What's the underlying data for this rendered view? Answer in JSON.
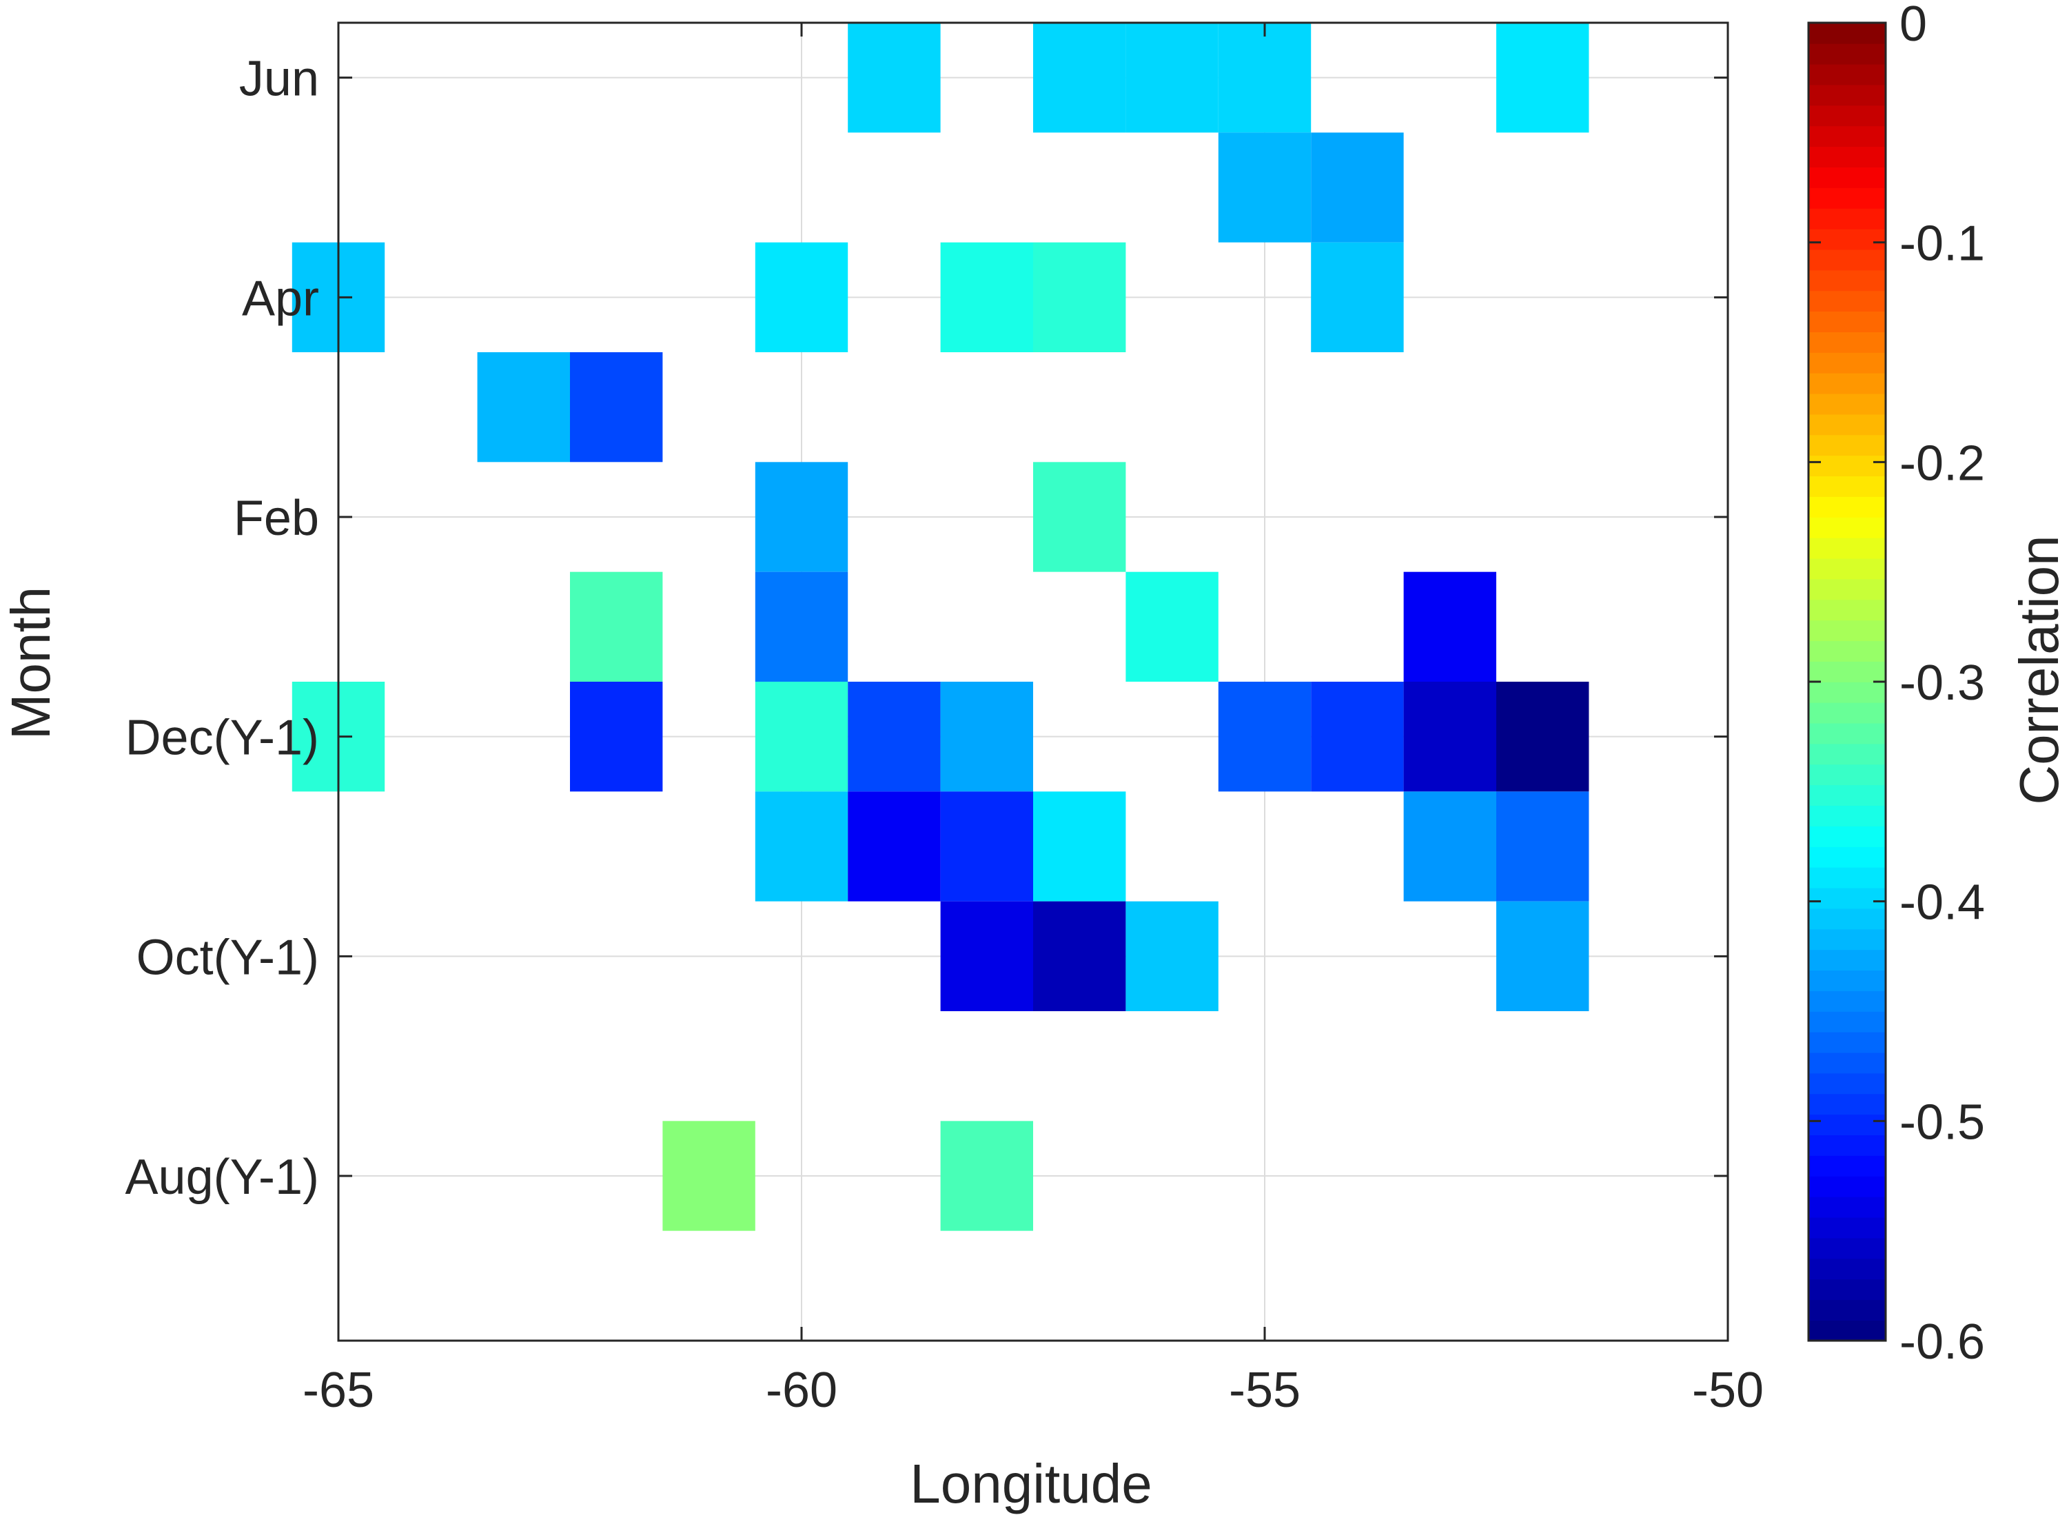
{
  "chart_data": {
    "type": "heatmap",
    "title": "",
    "xlabel": "Longitude",
    "ylabel": "Month",
    "xlim": [
      -65,
      -50
    ],
    "ylim": [
      -5.5,
      6.5
    ],
    "grid": true,
    "x_ticks": [
      -65,
      -60,
      -55,
      -50
    ],
    "x_tick_labels": [
      "-65",
      "-60",
      "-55",
      "-50"
    ],
    "y_ticks": [
      -4,
      -2,
      0,
      2,
      4,
      6
    ],
    "y_tick_labels": [
      "Aug(Y-1)",
      "Oct(Y-1)",
      "Dec(Y-1)",
      "Feb",
      "Apr",
      "Jun"
    ],
    "cell_width": 1,
    "cell_height": 1,
    "colorbar": {
      "label": "Correlation",
      "colormap": "jet",
      "range": [
        -0.6,
        0
      ],
      "levels": 64,
      "ticks": [
        0,
        -0.1,
        -0.2,
        -0.3,
        -0.4,
        -0.5,
        -0.6
      ],
      "tick_labels": [
        "0",
        "-0.1",
        "-0.2",
        "-0.3",
        "-0.4",
        "-0.5",
        "-0.6"
      ]
    },
    "cells": [
      {
        "x": -59,
        "y": 6,
        "v": -0.4
      },
      {
        "x": -57,
        "y": 6,
        "v": -0.4
      },
      {
        "x": -56,
        "y": 6,
        "v": -0.4
      },
      {
        "x": -55,
        "y": 6,
        "v": -0.4
      },
      {
        "x": -52,
        "y": 6,
        "v": -0.39
      },
      {
        "x": -55,
        "y": 5,
        "v": -0.42
      },
      {
        "x": -54,
        "y": 5,
        "v": -0.43
      },
      {
        "x": -65,
        "y": 4,
        "v": -0.41
      },
      {
        "x": -60,
        "y": 4,
        "v": -0.39
      },
      {
        "x": -58,
        "y": 4,
        "v": -0.36
      },
      {
        "x": -57,
        "y": 4,
        "v": -0.35
      },
      {
        "x": -54,
        "y": 4,
        "v": -0.41
      },
      {
        "x": -63,
        "y": 3,
        "v": -0.42
      },
      {
        "x": -62,
        "y": 3,
        "v": -0.48
      },
      {
        "x": -60,
        "y": 2,
        "v": -0.43
      },
      {
        "x": -57,
        "y": 2,
        "v": -0.34
      },
      {
        "x": -62,
        "y": 1,
        "v": -0.33
      },
      {
        "x": -60,
        "y": 1,
        "v": -0.45
      },
      {
        "x": -56,
        "y": 1,
        "v": -0.36
      },
      {
        "x": -53,
        "y": 1,
        "v": -0.53
      },
      {
        "x": -65,
        "y": 0,
        "v": -0.35
      },
      {
        "x": -62,
        "y": 0,
        "v": -0.5
      },
      {
        "x": -60,
        "y": 0,
        "v": -0.35
      },
      {
        "x": -59,
        "y": 0,
        "v": -0.48
      },
      {
        "x": -58,
        "y": 0,
        "v": -0.43
      },
      {
        "x": -55,
        "y": 0,
        "v": -0.47
      },
      {
        "x": -54,
        "y": 0,
        "v": -0.49
      },
      {
        "x": -53,
        "y": 0,
        "v": -0.56
      },
      {
        "x": -52,
        "y": 0,
        "v": -0.61
      },
      {
        "x": -60,
        "y": -1,
        "v": -0.41
      },
      {
        "x": -59,
        "y": -1,
        "v": -0.53
      },
      {
        "x": -58,
        "y": -1,
        "v": -0.5
      },
      {
        "x": -57,
        "y": -1,
        "v": -0.39
      },
      {
        "x": -53,
        "y": -1,
        "v": -0.44
      },
      {
        "x": -52,
        "y": -1,
        "v": -0.46
      },
      {
        "x": -58,
        "y": -2,
        "v": -0.54
      },
      {
        "x": -57,
        "y": -2,
        "v": -0.57
      },
      {
        "x": -56,
        "y": -2,
        "v": -0.41
      },
      {
        "x": -52,
        "y": -2,
        "v": -0.43
      },
      {
        "x": -61,
        "y": -4,
        "v": -0.3
      },
      {
        "x": -58,
        "y": -4,
        "v": -0.33
      }
    ]
  }
}
